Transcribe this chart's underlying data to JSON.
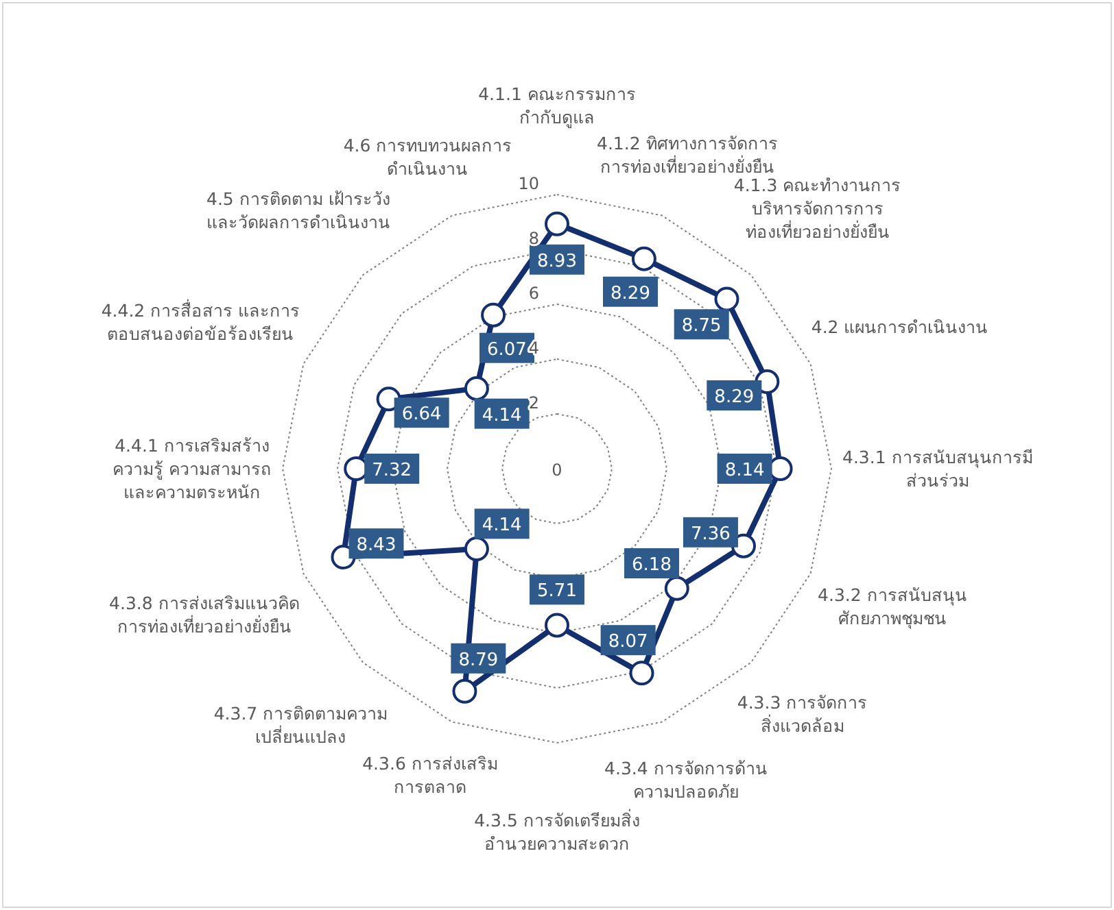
{
  "chart_data": {
    "type": "radar",
    "categories": [
      "4.1.1 คณะกรรมการ\nกำกับดูแล",
      "4.1.2 ทิศทางการจัดการ\nการท่องเที่ยวอย่างยั่งยืน",
      "4.1.3 คณะทำงานการ\nบริหารจัดการการ\nท่องเที่ยวอย่างยั่งยืน",
      "4.2 แผนการดำเนินงาน",
      "4.3.1 การสนับสนุนการมี\nส่วนร่วม",
      "4.3.2 การสนับสนุน\nศักยภาพชุมชน",
      "4.3.3 การจัดการ\nสิ่งแวดล้อม",
      "4.3.4 การจัดการด้าน\nความปลอดภัย",
      "4.3.5 การจัดเตรียมสิ่ง\nอำนวยความสะดวก",
      "4.3.6 การส่งเสริม\nการตลาด",
      "4.3.7 การติดตามความ\nเปลี่ยนแปลง",
      "4.3.8 การส่งเสริมแนวคิด\nการท่องเที่ยวอย่างยั่งยืน",
      "4.4.1 การเสริมสร้าง\nความรู้ ความสามารถ\nและความตระหนัก",
      "4.4.2 การสื่อสาร และการ\nตอบสนองต่อข้อร้องเรียน",
      "4.5 การติดตาม เฝ้าระวัง\nและวัดผลการดำเนินงาน",
      "4.6 การทบทวนผลการ\nดำเนินงาน"
    ],
    "series": [
      {
        "color": "#142f6e",
        "values": [
          8.93,
          8.29,
          8.75,
          8.29,
          8.14,
          7.36,
          6.18,
          8.07,
          5.71,
          8.79,
          4.14,
          8.43,
          7.32,
          6.64,
          4.14,
          6.07
        ]
      }
    ],
    "ylim": [
      0,
      10
    ],
    "yticks": [
      0,
      2,
      4,
      6,
      8,
      10
    ],
    "grid": true,
    "marker": "circle",
    "line_style": "solid",
    "data_labels": true
  }
}
